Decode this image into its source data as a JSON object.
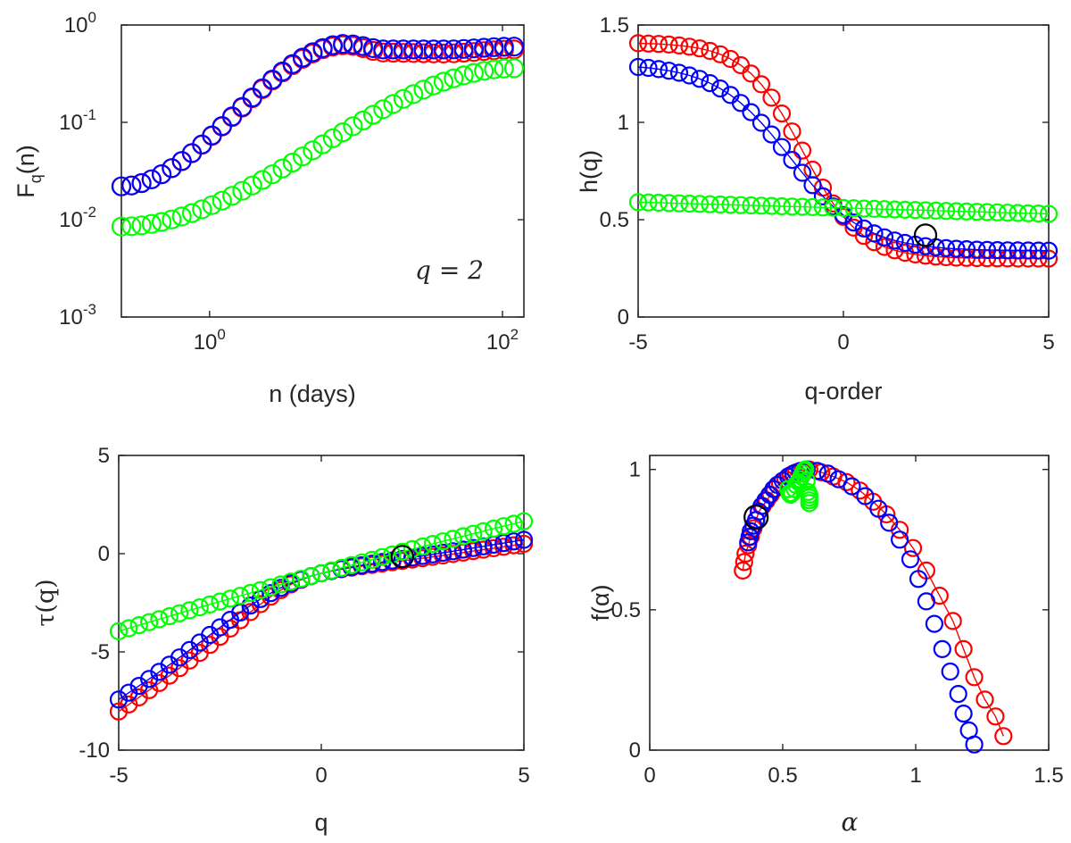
{
  "colors": {
    "red": "#ff0000",
    "blue": "#0000ff",
    "green": "#00ff00",
    "highlight": "#000000",
    "axis": "#262626"
  },
  "chart_data": [
    {
      "id": "fq",
      "type": "scatter",
      "xscale": "log",
      "yscale": "log",
      "xlim": [
        0.25,
        140
      ],
      "ylim": [
        0.001,
        1
      ],
      "xlabel": "n (days)",
      "ylabel_main": "F",
      "ylabel_sub": "q",
      "ylabel_tail": "(n)",
      "xticks": [
        {
          "v": 1,
          "base": "10",
          "exp": "0"
        },
        {
          "v": 100,
          "base": "10",
          "exp": "2"
        }
      ],
      "yticks": [
        {
          "v": 0.001,
          "base": "10",
          "exp": "-3"
        },
        {
          "v": 0.01,
          "base": "10",
          "exp": "-2"
        },
        {
          "v": 0.1,
          "base": "10",
          "exp": "-1"
        },
        {
          "v": 1,
          "base": "10",
          "exp": "0"
        }
      ],
      "annotation": "q = 2",
      "series": [
        {
          "name": "red",
          "color": "#ff0000",
          "x_range": [
            0.25,
            120
          ],
          "n_points": 40,
          "log_y_knots": [
            [
              0.25,
              0.022
            ],
            [
              8.5,
              0.62
            ],
            [
              16,
              0.52
            ],
            [
              40,
              0.51
            ],
            [
              120,
              0.56
            ]
          ]
        },
        {
          "name": "blue",
          "color": "#0000ff",
          "x_range": [
            0.25,
            120
          ],
          "n_points": 40,
          "log_y_knots": [
            [
              0.25,
              0.022
            ],
            [
              8.5,
              0.64
            ],
            [
              16,
              0.56
            ],
            [
              40,
              0.56
            ],
            [
              120,
              0.6
            ]
          ]
        },
        {
          "name": "green",
          "color": "#00ff00",
          "x_range": [
            0.25,
            120
          ],
          "n_points": 40,
          "log_y_knots": [
            [
              0.25,
              0.0085
            ],
            [
              120,
              0.36
            ]
          ]
        }
      ]
    },
    {
      "id": "hq",
      "type": "scatter",
      "xlim": [
        -5,
        5
      ],
      "ylim": [
        0,
        1.5
      ],
      "xlabel": "q-order",
      "ylabel": "h(q)",
      "xticks": [
        {
          "v": -5,
          "t": "-5"
        },
        {
          "v": 0,
          "t": "0"
        },
        {
          "v": 5,
          "t": "5"
        }
      ],
      "yticks": [
        {
          "v": 0,
          "t": "0"
        },
        {
          "v": 0.5,
          "t": "0.5"
        },
        {
          "v": 1,
          "t": "1"
        },
        {
          "v": 1.5,
          "t": "1.5"
        }
      ],
      "highlight": {
        "x": 2,
        "y": 0.42
      },
      "series": [
        {
          "name": "red",
          "color": "#ff0000",
          "q_range": [
            -5,
            5
          ],
          "n_points": 41,
          "sigmoid": {
            "hmin": 0.3,
            "hmax": 1.41,
            "center": -1.0,
            "width": 0.7
          }
        },
        {
          "name": "blue",
          "color": "#0000ff",
          "q_range": [
            -5,
            5
          ],
          "n_points": 41,
          "sigmoid": {
            "hmin": 0.34,
            "hmax": 1.3,
            "center": -1.3,
            "width": 0.9
          }
        },
        {
          "name": "green",
          "color": "#00ff00",
          "q_range": [
            -5,
            5
          ],
          "n_points": 41,
          "linear": {
            "y_at_min": 0.59,
            "y_at_max": 0.53
          }
        }
      ]
    },
    {
      "id": "tau",
      "type": "scatter",
      "xlim": [
        -5,
        5
      ],
      "ylim": [
        -10,
        5
      ],
      "xlabel": "q",
      "ylabel": "τ(q)",
      "xticks": [
        {
          "v": -5,
          "t": "-5"
        },
        {
          "v": 0,
          "t": "0"
        },
        {
          "v": 5,
          "t": "5"
        }
      ],
      "yticks": [
        {
          "v": -10,
          "t": "-10"
        },
        {
          "v": -5,
          "t": "-5"
        },
        {
          "v": 0,
          "t": "0"
        },
        {
          "v": 5,
          "t": "5"
        }
      ],
      "highlight": {
        "x": 2,
        "y": -0.15
      },
      "series": [
        {
          "name": "red",
          "color": "#ff0000",
          "q_range": [
            -5,
            5
          ],
          "n_points": 41,
          "derived_from": "hq.red"
        },
        {
          "name": "blue",
          "color": "#0000ff",
          "q_range": [
            -5,
            5
          ],
          "n_points": 41,
          "derived_from": "hq.blue"
        },
        {
          "name": "green",
          "color": "#00ff00",
          "q_range": [
            -5,
            5
          ],
          "n_points": 41,
          "derived_from": "hq.green"
        }
      ]
    },
    {
      "id": "falpha",
      "type": "scatter",
      "xlim": [
        0,
        1.5
      ],
      "ylim": [
        0,
        1.05
      ],
      "xlabel": "α",
      "ylabel": "f(α)",
      "xticks": [
        {
          "v": 0,
          "t": "0"
        },
        {
          "v": 0.5,
          "t": "0.5"
        },
        {
          "v": 1,
          "t": "1"
        },
        {
          "v": 1.5,
          "t": "1.5"
        }
      ],
      "yticks": [
        {
          "v": 0,
          "t": "0"
        },
        {
          "v": 0.5,
          "t": "0.5"
        },
        {
          "v": 1,
          "t": "1"
        }
      ],
      "highlight": {
        "x": 0.4,
        "y": 0.83
      },
      "series": [
        {
          "name": "red",
          "color": "#ff0000",
          "line": true,
          "points": [
            [
              0.35,
              0.64
            ],
            [
              0.355,
              0.67
            ],
            [
              0.36,
              0.7
            ],
            [
              0.37,
              0.73
            ],
            [
              0.38,
              0.76
            ],
            [
              0.39,
              0.79
            ],
            [
              0.4,
              0.82
            ],
            [
              0.41,
              0.85
            ],
            [
              0.425,
              0.87
            ],
            [
              0.44,
              0.89
            ],
            [
              0.455,
              0.91
            ],
            [
              0.47,
              0.93
            ],
            [
              0.49,
              0.95
            ],
            [
              0.51,
              0.965
            ],
            [
              0.53,
              0.98
            ],
            [
              0.55,
              0.99
            ],
            [
              0.575,
              0.995
            ],
            [
              0.6,
              1.0
            ],
            [
              0.645,
              0.99
            ],
            [
              0.69,
              0.975
            ],
            [
              0.74,
              0.955
            ],
            [
              0.79,
              0.925
            ],
            [
              0.84,
              0.885
            ],
            [
              0.89,
              0.84
            ],
            [
              0.94,
              0.785
            ],
            [
              0.99,
              0.72
            ],
            [
              1.04,
              0.64
            ],
            [
              1.09,
              0.55
            ],
            [
              1.14,
              0.46
            ],
            [
              1.18,
              0.36
            ],
            [
              1.22,
              0.26
            ],
            [
              1.26,
              0.18
            ],
            [
              1.3,
              0.12
            ],
            [
              1.33,
              0.05
            ]
          ]
        },
        {
          "name": "blue",
          "color": "#0000ff",
          "line": false,
          "points": [
            [
              0.37,
              0.74
            ],
            [
              0.375,
              0.76
            ],
            [
              0.38,
              0.78
            ],
            [
              0.39,
              0.8
            ],
            [
              0.4,
              0.82
            ],
            [
              0.41,
              0.85
            ],
            [
              0.42,
              0.87
            ],
            [
              0.435,
              0.89
            ],
            [
              0.45,
              0.91
            ],
            [
              0.465,
              0.93
            ],
            [
              0.48,
              0.945
            ],
            [
              0.5,
              0.96
            ],
            [
              0.52,
              0.975
            ],
            [
              0.54,
              0.985
            ],
            [
              0.565,
              0.995
            ],
            [
              0.59,
              1.0
            ],
            [
              0.63,
              0.995
            ],
            [
              0.67,
              0.985
            ],
            [
              0.71,
              0.965
            ],
            [
              0.76,
              0.94
            ],
            [
              0.81,
              0.905
            ],
            [
              0.86,
              0.86
            ],
            [
              0.9,
              0.81
            ],
            [
              0.94,
              0.75
            ],
            [
              0.98,
              0.68
            ],
            [
              1.01,
              0.61
            ],
            [
              1.04,
              0.53
            ],
            [
              1.07,
              0.45
            ],
            [
              1.1,
              0.36
            ],
            [
              1.13,
              0.28
            ],
            [
              1.16,
              0.2
            ],
            [
              1.18,
              0.13
            ],
            [
              1.2,
              0.07
            ],
            [
              1.22,
              0.02
            ]
          ]
        },
        {
          "name": "green",
          "color": "#00ff00",
          "line": false,
          "points": [
            [
              0.52,
              0.93
            ],
            [
              0.525,
              0.915
            ],
            [
              0.53,
              0.91
            ],
            [
              0.535,
              0.915
            ],
            [
              0.545,
              0.93
            ],
            [
              0.55,
              0.945
            ],
            [
              0.56,
              0.955
            ],
            [
              0.565,
              0.965
            ],
            [
              0.57,
              0.975
            ],
            [
              0.575,
              0.985
            ],
            [
              0.58,
              0.995
            ],
            [
              0.585,
              1.0
            ],
            [
              0.59,
              0.96
            ],
            [
              0.595,
              0.92
            ],
            [
              0.6,
              0.91
            ],
            [
              0.6,
              0.9
            ],
            [
              0.6,
              0.89
            ],
            [
              0.6,
              0.88
            ]
          ]
        }
      ]
    }
  ]
}
